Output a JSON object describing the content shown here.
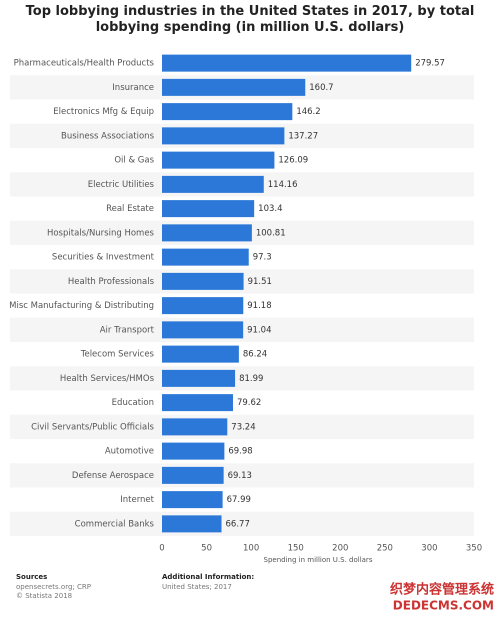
{
  "chart_data": {
    "type": "bar",
    "orientation": "horizontal",
    "title": "Top lobbying industries in the United States in 2017, by total lobbying spending (in million U.S. dollars)",
    "categories": [
      "Pharmaceuticals/Health Products",
      "Insurance",
      "Electronics Mfg & Equip",
      "Business Associations",
      "Oil & Gas",
      "Electric Utilities",
      "Real Estate",
      "Hospitals/Nursing Homes",
      "Securities & Investment",
      "Health Professionals",
      "Misc Manufacturing & Distributing",
      "Air Transport",
      "Telecom Services",
      "Health Services/HMOs",
      "Education",
      "Civil Servants/Public Officials",
      "Automotive",
      "Defense Aerospace",
      "Internet",
      "Commercial Banks"
    ],
    "values": [
      279.57,
      160.7,
      146.2,
      137.27,
      126.09,
      114.16,
      103.4,
      100.81,
      97.3,
      91.51,
      91.18,
      91.04,
      86.24,
      81.99,
      79.62,
      73.24,
      69.98,
      69.13,
      67.99,
      66.77
    ],
    "color": "#2b78d8",
    "x_label": "Spending in million U.S. dollars",
    "xlim": [
      0,
      350
    ],
    "xticks": [
      0,
      50,
      100,
      150,
      200,
      250,
      300,
      350
    ]
  },
  "footer": {
    "sources_title": "Sources",
    "sources": "opensecrets.org; CRP",
    "copyright": "© Statista 2018",
    "info_title": "Additional Information:",
    "info": "United States; 2017"
  },
  "watermark": {
    "line1": "织梦内容管理系统",
    "line2": "DEDECMS.COM"
  }
}
